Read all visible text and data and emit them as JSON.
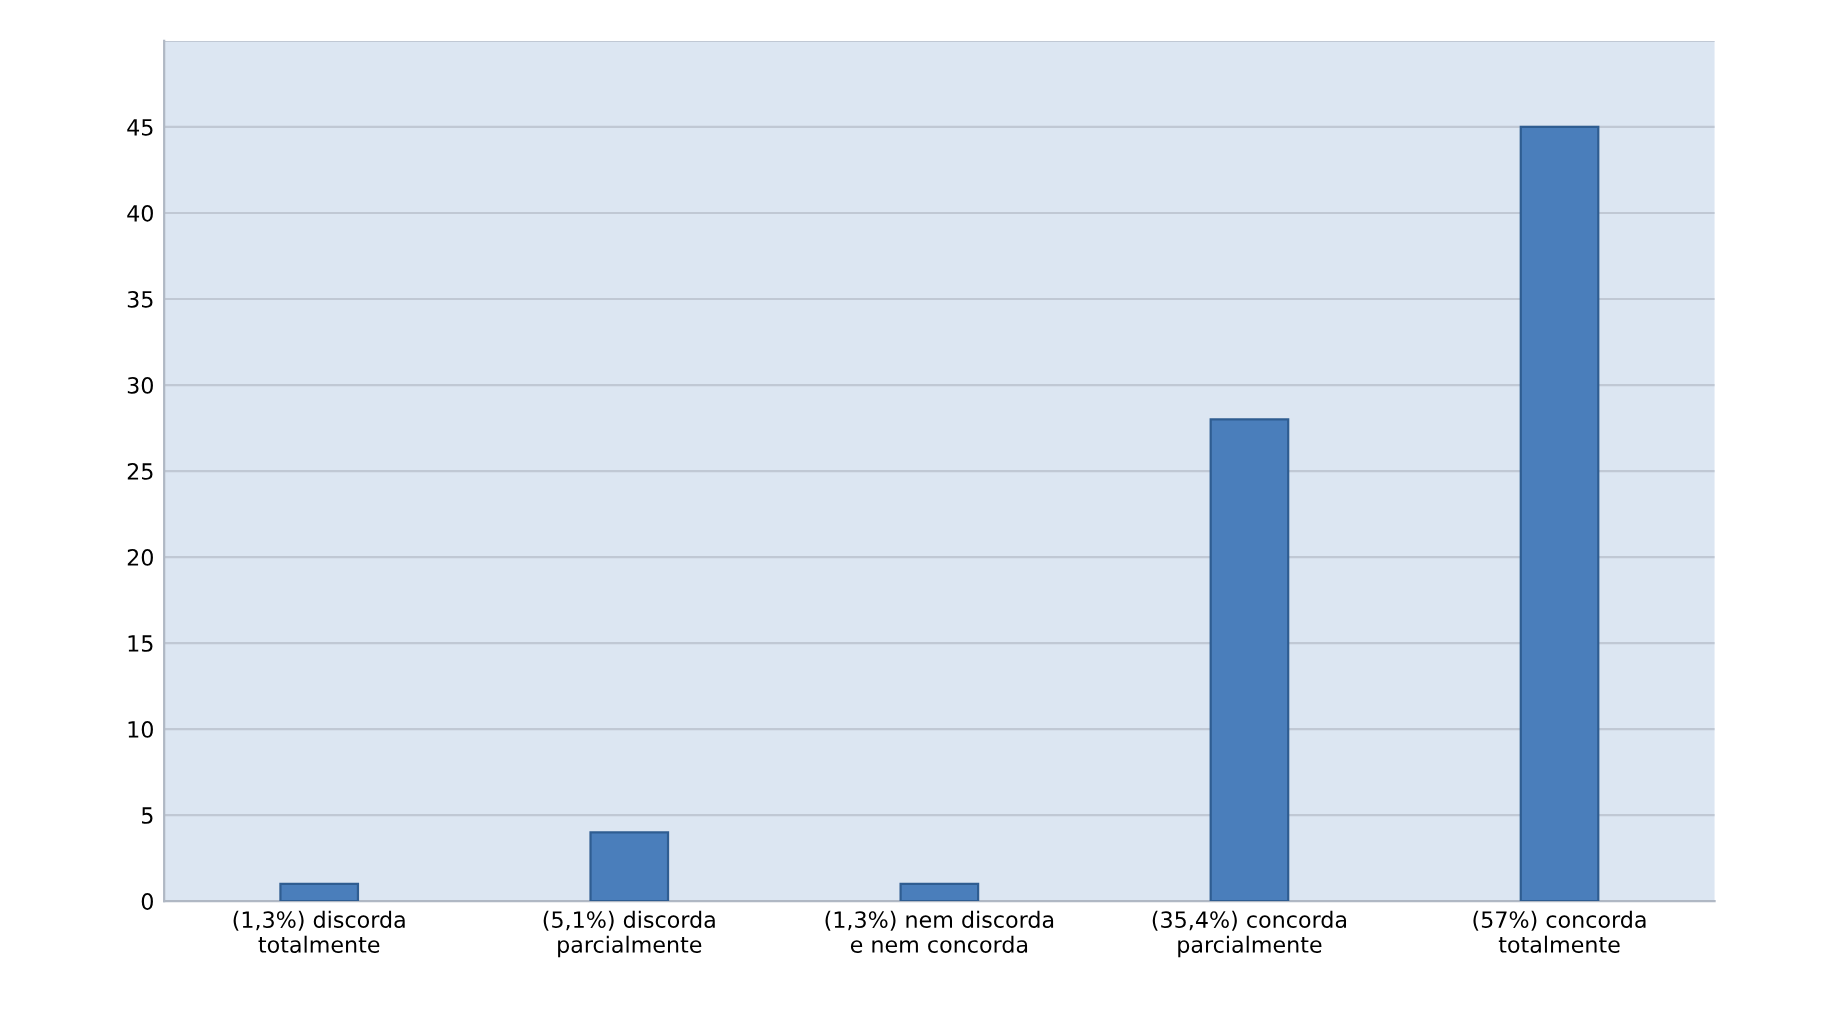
{
  "chart_data": {
    "type": "bar",
    "categories": [
      "(1,3%) discorda\ntotalmente",
      "(5,1%) discorda\nparcialmente",
      "(1,3%) nem discorda\ne nem concorda",
      "(35,4%) concorda\nparcialmente",
      "(57%) concorda\ntotalmente"
    ],
    "values": [
      1,
      4,
      1,
      28,
      45
    ],
    "color": "#4a7ebb",
    "ylim": [
      0,
      50
    ],
    "yticks": [
      0,
      5,
      10,
      15,
      20,
      25,
      30,
      35,
      40,
      45,
      {
        "value": 50,
        "label": null
      }
    ],
    "grid": "y"
  }
}
